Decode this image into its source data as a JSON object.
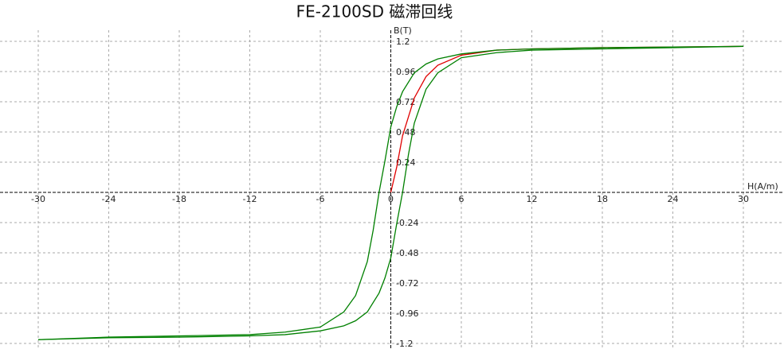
{
  "chart_data": {
    "type": "line",
    "title": "FE-2100SD 磁滞回线",
    "x_label": "H(A/m)",
    "y_label": "B(T)",
    "xlim": [
      -30,
      30
    ],
    "ylim": [
      -1.2,
      1.2
    ],
    "xticks": [
      -30,
      -24,
      -18,
      -12,
      -6,
      0,
      6,
      12,
      18,
      24,
      30
    ],
    "yticks": [
      -1.2,
      -0.96,
      -0.72,
      -0.48,
      -0.24,
      0.24,
      0.48,
      0.72,
      0.96,
      1.2
    ],
    "grid": true,
    "series": [
      {
        "color": "#e00000",
        "x": [
          0,
          0.5,
          1,
          2,
          3,
          4,
          6,
          9,
          12,
          18,
          24,
          30
        ],
        "values": [
          0,
          0.2,
          0.45,
          0.75,
          0.92,
          1.01,
          1.09,
          1.13,
          1.14,
          1.15,
          1.155,
          1.16
        ]
      },
      {
        "color": "#008000",
        "x": [
          30,
          24,
          18,
          12,
          9,
          6,
          4,
          3,
          2,
          1,
          0.5,
          0,
          -0.5,
          -1,
          -1.5,
          -2,
          -3,
          -4,
          -6,
          -9,
          -12,
          -18,
          -24,
          -30
        ],
        "values": [
          1.16,
          1.155,
          1.15,
          1.14,
          1.13,
          1.1,
          1.06,
          1.02,
          0.95,
          0.8,
          0.68,
          0.52,
          0.25,
          0,
          -0.3,
          -0.55,
          -0.82,
          -0.95,
          -1.07,
          -1.11,
          -1.13,
          -1.14,
          -1.15,
          -1.17
        ]
      },
      {
        "color": "#008000",
        "x": [
          -30,
          -24,
          -18,
          -12,
          -9,
          -6,
          -4,
          -3,
          -2,
          -1,
          -0.5,
          0,
          0.5,
          1,
          1.5,
          2,
          3,
          4,
          6,
          9,
          12,
          18,
          24,
          30
        ],
        "values": [
          -1.17,
          -1.155,
          -1.15,
          -1.14,
          -1.13,
          -1.1,
          -1.06,
          -1.02,
          -0.95,
          -0.8,
          -0.68,
          -0.52,
          -0.25,
          0,
          0.3,
          0.55,
          0.82,
          0.95,
          1.07,
          1.11,
          1.13,
          1.14,
          1.15,
          1.16
        ]
      }
    ]
  }
}
